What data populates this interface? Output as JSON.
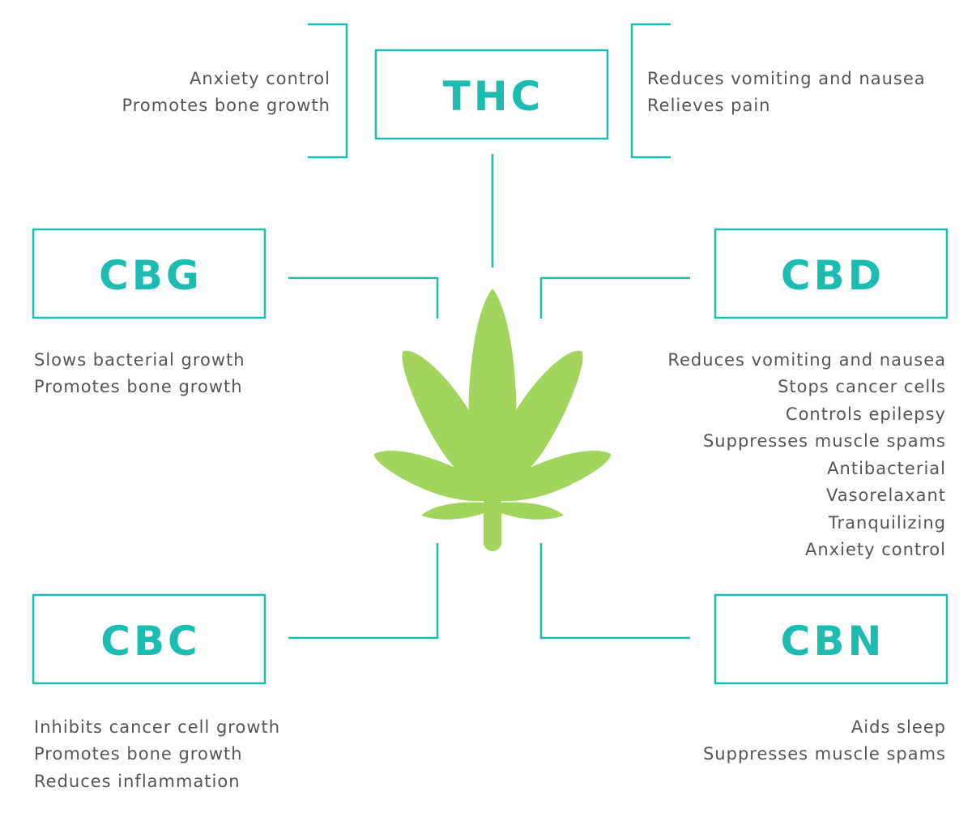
{
  "colors": {
    "accent": "#1cbcb0",
    "leaf": "#a3d45d",
    "text": "#555555"
  },
  "compounds": [
    {
      "key": "thc",
      "label": "THC",
      "left_benefits": [
        "Anxiety control",
        "Promotes bone growth"
      ],
      "right_benefits": [
        "Reduces vomiting and nausea",
        "Relieves pain"
      ]
    },
    {
      "key": "cbg",
      "label": "CBG",
      "benefits": [
        "Slows bacterial growth",
        "Promotes bone growth"
      ]
    },
    {
      "key": "cbd",
      "label": "CBD",
      "benefits": [
        "Reduces vomiting and nausea",
        "Stops cancer cells",
        "Controls epilepsy",
        "Suppresses muscle spams",
        "Antibacterial",
        "Vasorelaxant",
        "Tranquilizing",
        "Anxiety control"
      ]
    },
    {
      "key": "cbc",
      "label": "CBC",
      "benefits": [
        "Inhibits cancer cell growth",
        "Promotes bone growth",
        "Reduces inflammation"
      ]
    },
    {
      "key": "cbn",
      "label": "CBN",
      "benefits": [
        "Aids sleep",
        "Suppresses muscle spams"
      ]
    }
  ],
  "center_icon": "cannabis-leaf-icon"
}
